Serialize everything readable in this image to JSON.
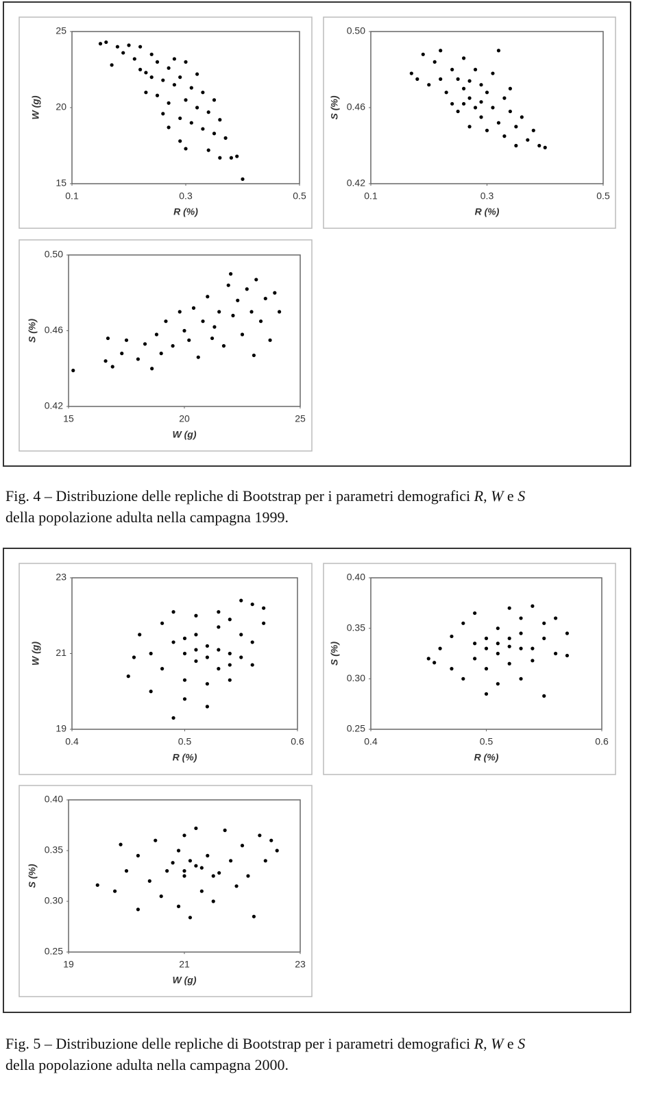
{
  "chart_data": [
    {
      "type": "scatter",
      "xlabel": "R (%)",
      "ylabel": "W (g)",
      "xlim": [
        0.1,
        0.5
      ],
      "xticks": [
        0.1,
        0.3,
        0.5
      ],
      "ylim": [
        15,
        25
      ],
      "yticks": [
        15,
        20,
        25
      ],
      "color": "#000000",
      "x": [
        0.15,
        0.16,
        0.17,
        0.18,
        0.19,
        0.2,
        0.21,
        0.22,
        0.22,
        0.23,
        0.24,
        0.24,
        0.25,
        0.25,
        0.26,
        0.26,
        0.27,
        0.27,
        0.28,
        0.28,
        0.29,
        0.29,
        0.3,
        0.3,
        0.3,
        0.31,
        0.31,
        0.32,
        0.32,
        0.33,
        0.33,
        0.34,
        0.34,
        0.35,
        0.35,
        0.36,
        0.36,
        0.37,
        0.38,
        0.39,
        0.4,
        0.27,
        0.23,
        0.29
      ],
      "values": [
        24.2,
        24.3,
        22.8,
        24.0,
        23.6,
        24.1,
        23.2,
        22.5,
        24.0,
        21.0,
        23.5,
        22.0,
        20.8,
        23.0,
        21.8,
        19.6,
        22.6,
        20.3,
        23.2,
        21.5,
        19.3,
        22.0,
        20.5,
        17.3,
        23.0,
        21.3,
        19.0,
        22.2,
        20.0,
        18.6,
        21.0,
        19.7,
        17.2,
        18.3,
        20.5,
        16.7,
        19.2,
        18.0,
        16.7,
        16.8,
        15.3,
        18.7,
        22.3,
        17.8
      ]
    },
    {
      "type": "scatter",
      "xlabel": "R (%)",
      "ylabel": "S (%)",
      "xlim": [
        0.1,
        0.5
      ],
      "xticks": [
        0.1,
        0.3,
        0.5
      ],
      "ylim": [
        0.42,
        0.5
      ],
      "yticks": [
        0.42,
        0.46,
        {
          "value": 0.5,
          "label": "0.50"
        }
      ],
      "color": "#000000",
      "x": [
        0.17,
        0.18,
        0.19,
        0.2,
        0.21,
        0.22,
        0.22,
        0.23,
        0.24,
        0.24,
        0.25,
        0.25,
        0.26,
        0.26,
        0.27,
        0.27,
        0.28,
        0.28,
        0.29,
        0.29,
        0.3,
        0.3,
        0.31,
        0.31,
        0.32,
        0.32,
        0.33,
        0.33,
        0.34,
        0.34,
        0.35,
        0.35,
        0.36,
        0.37,
        0.38,
        0.39,
        0.4,
        0.26,
        0.29,
        0.27
      ],
      "values": [
        0.478,
        0.475,
        0.488,
        0.472,
        0.484,
        0.49,
        0.475,
        0.468,
        0.48,
        0.462,
        0.475,
        0.458,
        0.486,
        0.47,
        0.465,
        0.45,
        0.48,
        0.46,
        0.472,
        0.455,
        0.468,
        0.448,
        0.478,
        0.46,
        0.49,
        0.452,
        0.465,
        0.445,
        0.458,
        0.47,
        0.45,
        0.44,
        0.455,
        0.443,
        0.448,
        0.44,
        0.439,
        0.462,
        0.463,
        0.474
      ]
    },
    {
      "type": "scatter",
      "xlabel": "W (g)",
      "ylabel": "S (%)",
      "xlim": [
        15,
        25
      ],
      "xticks": [
        15,
        20,
        25
      ],
      "ylim": [
        0.42,
        0.5
      ],
      "yticks": [
        0.42,
        0.46,
        {
          "value": 0.5,
          "label": "0.50"
        }
      ],
      "color": "#000000",
      "x": [
        15.2,
        16.6,
        16.7,
        16.9,
        17.3,
        17.5,
        18.0,
        18.3,
        18.6,
        18.8,
        19.0,
        19.2,
        19.5,
        19.8,
        20.0,
        20.2,
        20.4,
        20.6,
        20.8,
        21.0,
        21.3,
        21.5,
        21.7,
        21.9,
        22.1,
        22.3,
        22.5,
        22.7,
        22.9,
        23.1,
        23.3,
        23.5,
        23.7,
        23.9,
        24.1,
        23.0,
        22.0,
        21.2
      ],
      "values": [
        0.439,
        0.444,
        0.456,
        0.441,
        0.448,
        0.455,
        0.445,
        0.453,
        0.44,
        0.458,
        0.448,
        0.465,
        0.452,
        0.47,
        0.46,
        0.455,
        0.472,
        0.446,
        0.465,
        0.478,
        0.462,
        0.47,
        0.452,
        0.484,
        0.468,
        0.476,
        0.458,
        0.482,
        0.47,
        0.487,
        0.465,
        0.477,
        0.455,
        0.48,
        0.47,
        0.447,
        0.49,
        0.456
      ]
    },
    {
      "type": "scatter",
      "xlabel": "R (%)",
      "ylabel": "W (g)",
      "xlim": [
        0.4,
        0.6
      ],
      "xticks": [
        0.4,
        0.5,
        0.6
      ],
      "ylim": [
        19,
        23
      ],
      "yticks": [
        19,
        21,
        23
      ],
      "color": "#000000",
      "x": [
        0.45,
        0.455,
        0.46,
        0.47,
        0.47,
        0.48,
        0.48,
        0.49,
        0.49,
        0.49,
        0.5,
        0.5,
        0.5,
        0.51,
        0.51,
        0.51,
        0.52,
        0.52,
        0.52,
        0.53,
        0.53,
        0.53,
        0.54,
        0.54,
        0.54,
        0.55,
        0.55,
        0.55,
        0.56,
        0.56,
        0.56,
        0.57,
        0.57,
        0.52,
        0.51,
        0.53,
        0.5,
        0.54
      ],
      "values": [
        20.4,
        20.9,
        21.5,
        21.0,
        20.0,
        21.8,
        20.6,
        19.3,
        21.3,
        22.1,
        20.3,
        21.0,
        19.8,
        21.5,
        20.8,
        22.0,
        20.2,
        21.2,
        19.6,
        21.7,
        20.6,
        22.1,
        21.0,
        20.3,
        21.9,
        22.4,
        20.9,
        21.5,
        21.3,
        22.3,
        20.7,
        21.8,
        22.2,
        20.9,
        21.1,
        21.1,
        21.4,
        20.7
      ]
    },
    {
      "type": "scatter",
      "xlabel": "R (%)",
      "ylabel": "S (%)",
      "xlim": [
        0.4,
        0.6
      ],
      "xticks": [
        0.4,
        0.5,
        0.6
      ],
      "ylim": [
        0.25,
        0.4
      ],
      "yticks": [
        0.25,
        {
          "value": 0.3,
          "label": "0.30"
        },
        0.35,
        {
          "value": 0.4,
          "label": "0.40"
        }
      ],
      "color": "#000000",
      "x": [
        0.45,
        0.455,
        0.46,
        0.47,
        0.47,
        0.48,
        0.48,
        0.49,
        0.49,
        0.49,
        0.5,
        0.5,
        0.5,
        0.51,
        0.51,
        0.51,
        0.52,
        0.52,
        0.52,
        0.53,
        0.53,
        0.53,
        0.54,
        0.54,
        0.55,
        0.55,
        0.55,
        0.56,
        0.56,
        0.57,
        0.57,
        0.51,
        0.52,
        0.53,
        0.5,
        0.54
      ],
      "values": [
        0.32,
        0.316,
        0.33,
        0.342,
        0.31,
        0.355,
        0.3,
        0.335,
        0.32,
        0.365,
        0.285,
        0.34,
        0.31,
        0.325,
        0.35,
        0.295,
        0.37,
        0.332,
        0.315,
        0.345,
        0.3,
        0.36,
        0.33,
        0.318,
        0.355,
        0.283,
        0.34,
        0.325,
        0.36,
        0.345,
        0.323,
        0.335,
        0.34,
        0.33,
        0.33,
        0.372
      ]
    },
    {
      "type": "scatter",
      "xlabel": "W (g)",
      "ylabel": "S (%)",
      "xlim": [
        19,
        23
      ],
      "xticks": [
        19,
        21,
        23
      ],
      "ylim": [
        0.25,
        0.4
      ],
      "yticks": [
        0.25,
        {
          "value": 0.3,
          "label": "0.30"
        },
        0.35,
        {
          "value": 0.4,
          "label": "0.40"
        }
      ],
      "color": "#000000",
      "x": [
        19.5,
        19.8,
        19.9,
        20.0,
        20.2,
        20.2,
        20.4,
        20.5,
        20.6,
        20.8,
        20.9,
        20.9,
        21.0,
        21.0,
        21.1,
        21.2,
        21.2,
        21.3,
        21.4,
        21.5,
        21.6,
        21.7,
        21.8,
        21.9,
        22.0,
        22.1,
        22.2,
        22.3,
        22.4,
        22.5,
        22.6,
        21.0,
        21.1,
        21.3,
        20.7,
        21.5
      ],
      "values": [
        0.316,
        0.31,
        0.356,
        0.33,
        0.345,
        0.292,
        0.32,
        0.36,
        0.305,
        0.338,
        0.35,
        0.295,
        0.325,
        0.365,
        0.284,
        0.335,
        0.372,
        0.31,
        0.345,
        0.3,
        0.328,
        0.37,
        0.34,
        0.315,
        0.355,
        0.325,
        0.285,
        0.365,
        0.34,
        0.36,
        0.35,
        0.33,
        0.34,
        0.333,
        0.33,
        0.325
      ]
    }
  ],
  "captions": [
    {
      "lines": [
        [
          "Fig. 4 – Distribuzione delle repliche di Bootstrap per i parametri demografici ",
          "R",
          ", ",
          "W",
          " e ",
          "S"
        ],
        [
          "della popolazione adulta nella campagna 1999."
        ]
      ]
    },
    {
      "lines": [
        [
          "Fig. 5 – Distribuzione delle repliche di Bootstrap per i parametri demografici ",
          "R",
          ", ",
          "W",
          " e ",
          "S"
        ],
        [
          "della popolazione adulta nella campagna 2000."
        ]
      ]
    }
  ]
}
